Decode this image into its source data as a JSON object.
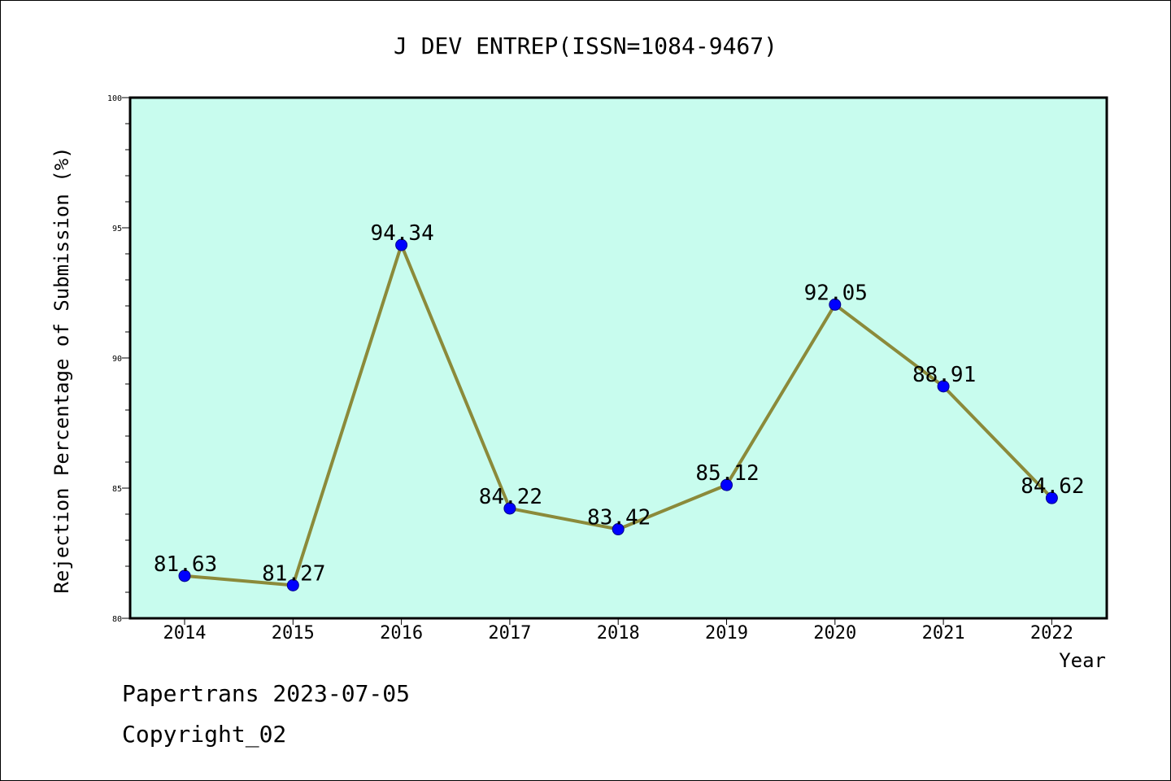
{
  "chart_data": {
    "type": "line",
    "title": "J DEV ENTREP(ISSN=1084-9467)",
    "xlabel": "Year",
    "ylabel": "Rejection Percentage of Submission (%)",
    "categories": [
      "2014",
      "2015",
      "2016",
      "2017",
      "2018",
      "2019",
      "2020",
      "2021",
      "2022"
    ],
    "series": [
      {
        "values": [
          81.63,
          81.27,
          94.34,
          84.22,
          83.42,
          85.12,
          92.05,
          88.91,
          84.62
        ],
        "value_labels": [
          "81.63",
          "81.27",
          "94.34",
          "84.22",
          "83.42",
          "85.12",
          "92.05",
          "88.91",
          "84.62"
        ],
        "line_color": "#8b8a3a",
        "marker_color": "#0000ff"
      }
    ],
    "ylim": [
      80,
      100
    ],
    "yticks": [
      "80",
      "85",
      "90",
      "95",
      "100"
    ],
    "plot_background": "#c8fcee",
    "grid": false,
    "legend": "none"
  },
  "footer": {
    "line1": "Papertrans 2023-07-05",
    "line2": "Copyright_02"
  }
}
